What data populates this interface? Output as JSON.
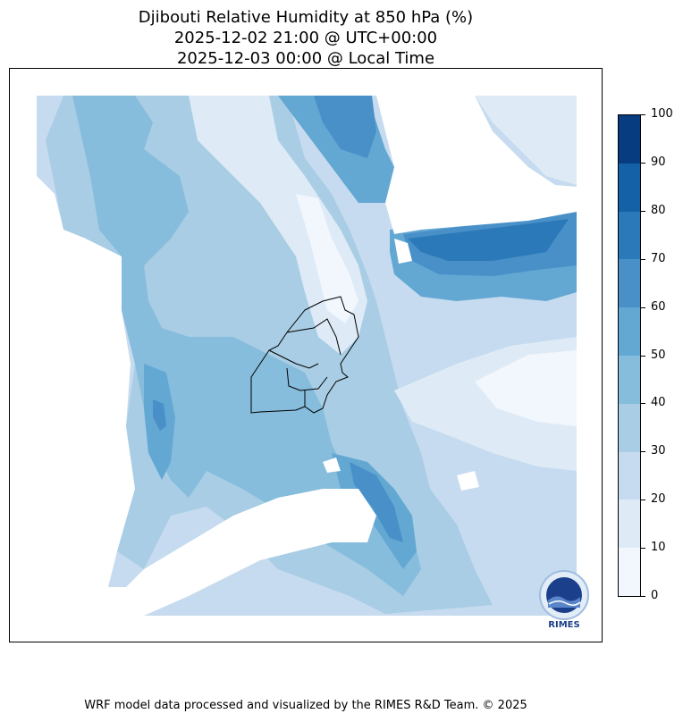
{
  "title": {
    "line1": "Djibouti Relative Humidity at 850 hPa (%)",
    "line2": "2025-12-02 21:00 @ UTC+00:00",
    "line3": "2025-12-03 00:00 @ Local Time"
  },
  "colorbar": {
    "levels": [
      0,
      10,
      20,
      30,
      40,
      50,
      60,
      70,
      80,
      90,
      100
    ],
    "tick_labels": [
      "0",
      "10",
      "20",
      "30",
      "40",
      "50",
      "60",
      "70",
      "80",
      "90",
      "100"
    ],
    "colors": [
      "#f2f7fd",
      "#deebf7",
      "#c6dbef",
      "#a8cde4",
      "#86bcdc",
      "#63a7d3",
      "#4890c7",
      "#2c79b9",
      "#1561a8",
      "#083c80"
    ]
  },
  "logo": {
    "text": "RIMES"
  },
  "footer": {
    "credit": "WRF model data processed and visualized by the RIMES R&D Team. © 2025"
  }
}
